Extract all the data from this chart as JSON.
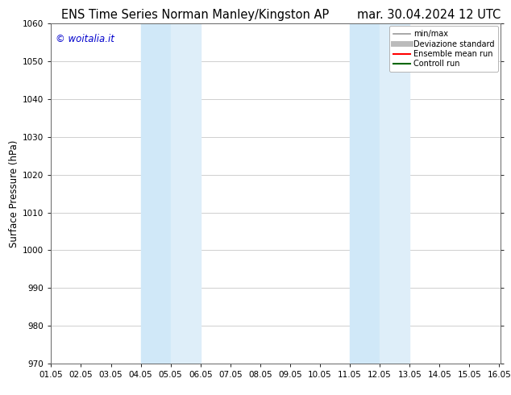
{
  "title_left": "ENS Time Series Norman Manley/Kingston AP",
  "title_right": "mar. 30.04.2024 12 UTC",
  "ylabel": "Surface Pressure (hPa)",
  "xlim": [
    1.0,
    16.05
  ],
  "ylim": [
    970,
    1060
  ],
  "yticks": [
    970,
    980,
    990,
    1000,
    1010,
    1020,
    1030,
    1040,
    1050,
    1060
  ],
  "xtick_labels": [
    "01.05",
    "02.05",
    "03.05",
    "04.05",
    "05.05",
    "06.05",
    "07.05",
    "08.05",
    "09.05",
    "10.05",
    "11.05",
    "12.05",
    "13.05",
    "14.05",
    "15.05",
    "16.05"
  ],
  "xtick_positions": [
    1.0,
    2.0,
    3.0,
    4.0,
    5.0,
    6.0,
    7.0,
    8.0,
    9.0,
    10.0,
    11.0,
    12.0,
    13.0,
    14.0,
    15.0,
    16.0
  ],
  "shaded_regions": [
    {
      "xmin": 4.0,
      "xmax": 5.0,
      "color": "#d0e8f8"
    },
    {
      "xmin": 5.0,
      "xmax": 6.0,
      "color": "#deeef9"
    },
    {
      "xmin": 11.0,
      "xmax": 12.0,
      "color": "#d0e8f8"
    },
    {
      "xmin": 12.0,
      "xmax": 13.0,
      "color": "#deeef9"
    }
  ],
  "watermark_text": "© woitalia.it",
  "watermark_color": "#0000cc",
  "background_color": "#ffffff",
  "grid_color": "#c8c8c8",
  "legend_items": [
    {
      "label": "min/max",
      "color": "#999999",
      "lw": 1.2,
      "style": "solid"
    },
    {
      "label": "Deviazione standard",
      "color": "#bbbbbb",
      "lw": 5,
      "style": "solid"
    },
    {
      "label": "Ensemble mean run",
      "color": "#ff0000",
      "lw": 1.5,
      "style": "solid"
    },
    {
      "label": "Controll run",
      "color": "#006600",
      "lw": 1.5,
      "style": "solid"
    }
  ],
  "title_fontsize": 10.5,
  "ylabel_fontsize": 8.5,
  "tick_fontsize": 7.5,
  "watermark_fontsize": 8.5,
  "legend_fontsize": 7.0
}
